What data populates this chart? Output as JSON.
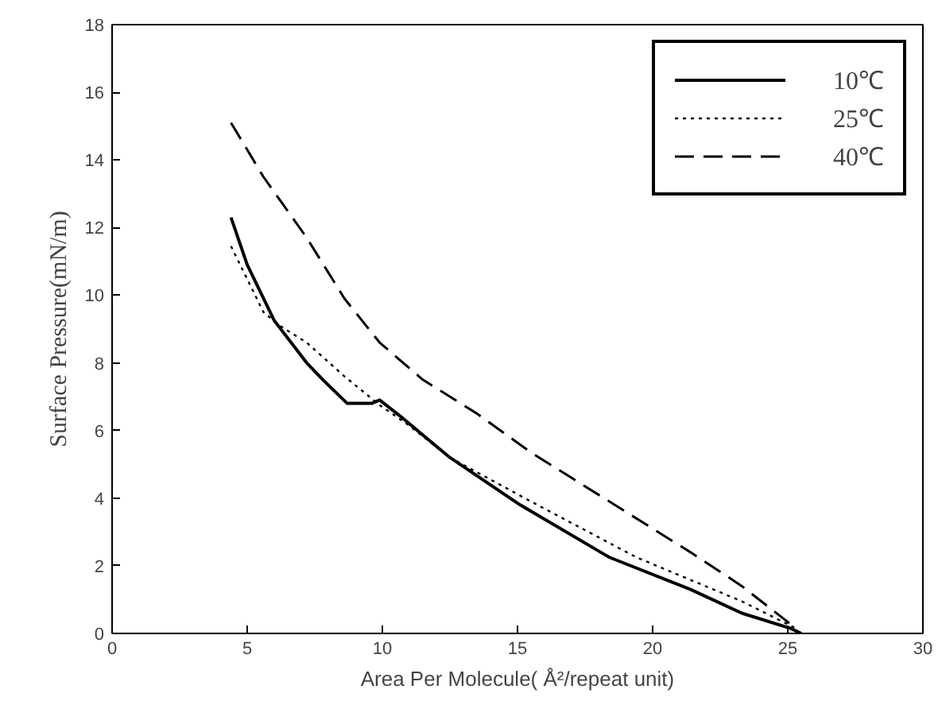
{
  "chart_data": {
    "type": "line",
    "xlabel": "Area Per Molecule( Å²/repeat unit)",
    "ylabel": "Surface Pressure(mN/m)",
    "xlim": [
      0,
      30
    ],
    "xticks": [
      0,
      5,
      10,
      15,
      20,
      25,
      30
    ],
    "ylim": [
      0,
      18
    ],
    "yticks": [
      0,
      2,
      4,
      6,
      8,
      10,
      12,
      14,
      16,
      18
    ],
    "grid": false,
    "legend": "top right",
    "marker": "none",
    "series": [
      {
        "name": "10℃",
        "color": "#000000",
        "line_style": "solid",
        "x": [
          4.4,
          5.0,
          6.0,
          7.2,
          7.8,
          8.7,
          9.6,
          9.9,
          10.7,
          12.5,
          15.1,
          18.4,
          21.4,
          23.3,
          25.1,
          25.5
        ],
        "values": [
          12.3,
          10.9,
          9.25,
          8.0,
          7.5,
          6.8,
          6.8,
          6.9,
          6.4,
          5.2,
          3.8,
          2.25,
          1.3,
          0.6,
          0.15,
          0
        ]
      },
      {
        "name": "25℃",
        "color": "#000000",
        "line_style": "dotted",
        "x": [
          4.4,
          5.6,
          6.2,
          7.2,
          8.6,
          9.9,
          10.9,
          12.5,
          15.5,
          19.4,
          23.3,
          25.3
        ],
        "values": [
          11.45,
          9.5,
          9.1,
          8.6,
          7.6,
          6.75,
          6.2,
          5.2,
          3.9,
          2.25,
          0.95,
          0.15
        ]
      },
      {
        "name": "40℃",
        "color": "#000000",
        "line_style": "dashed",
        "x": [
          4.4,
          5.6,
          7.2,
          8.6,
          9.9,
          11.5,
          13.5,
          15.5,
          18.4,
          21.4,
          23.3,
          25.3
        ],
        "values": [
          15.1,
          13.5,
          11.7,
          9.9,
          8.6,
          7.5,
          6.5,
          5.35,
          3.9,
          2.4,
          1.4,
          0.15
        ]
      }
    ]
  }
}
